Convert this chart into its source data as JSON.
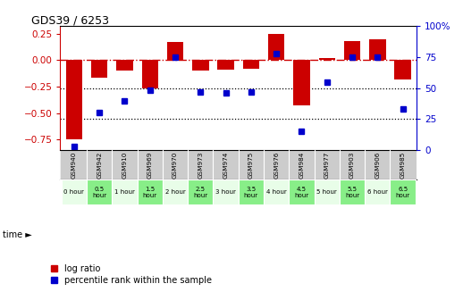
{
  "title": "GDS39 / 6253",
  "samples": [
    "GSM940",
    "GSM942",
    "GSM910",
    "GSM969",
    "GSM970",
    "GSM973",
    "GSM974",
    "GSM975",
    "GSM976",
    "GSM984",
    "GSM977",
    "GSM903",
    "GSM906",
    "GSM985"
  ],
  "time_labels": [
    "0 hour",
    "0.5\nhour",
    "1 hour",
    "1.5\nhour",
    "2 hour",
    "2.5\nhour",
    "3 hour",
    "3.5\nhour",
    "4 hour",
    "4.5\nhour",
    "5 hour",
    "5.5\nhour",
    "6 hour",
    "6.5\nhour"
  ],
  "log_ratio": [
    -0.75,
    -0.17,
    -0.1,
    -0.27,
    0.17,
    -0.1,
    -0.09,
    -0.08,
    0.25,
    -0.43,
    0.02,
    0.18,
    0.2,
    -0.18
  ],
  "percentile": [
    3,
    30,
    40,
    48,
    75,
    47,
    46,
    47,
    78,
    15,
    55,
    75,
    75,
    33
  ],
  "bar_color": "#cc0000",
  "dot_color": "#0000cc",
  "dashed_line_color": "#cc0000",
  "dotted_line_color": "#000000",
  "ylim_left": [
    -0.85,
    0.32
  ],
  "ylim_right": [
    0,
    100
  ],
  "yticks_left": [
    0.25,
    0.0,
    -0.25,
    -0.5,
    -0.75
  ],
  "yticks_right": [
    100,
    75,
    50,
    25,
    0
  ],
  "ytick_labels_right": [
    "100%",
    "75",
    "50",
    "25",
    "0"
  ],
  "time_bg_light": "#e8fde8",
  "time_bg_dark": "#88ee88",
  "sample_bg": "#cccccc",
  "legend_red_label": "log ratio",
  "legend_blue_label": "percentile rank within the sample"
}
